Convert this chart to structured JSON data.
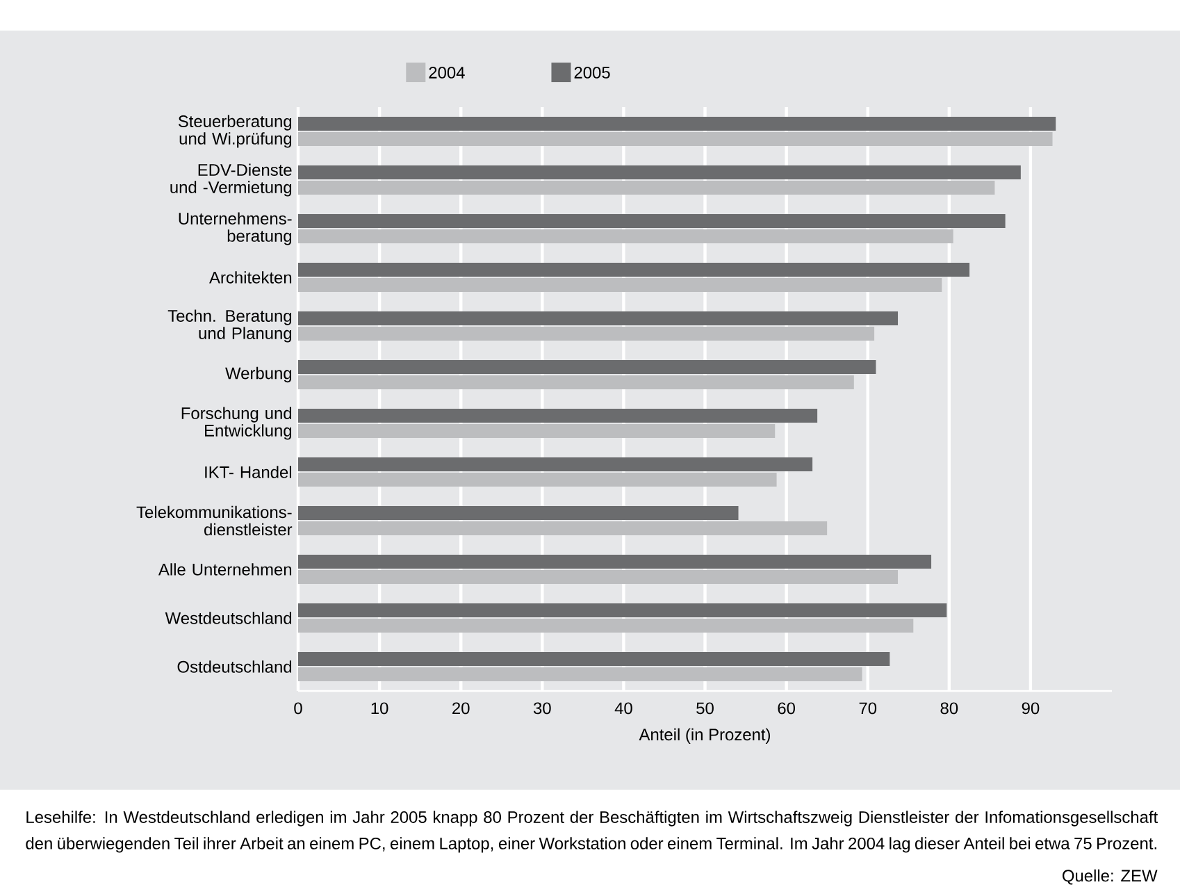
{
  "chart_data": {
    "type": "bar",
    "orientation": "horizontal",
    "xlabel": "Anteil (in Prozent)",
    "categories": [
      "Steuerberatung und Wi.prüfung",
      "EDV-Dienste und -Vermietung",
      "Unternehmens-beratung",
      "Architekten",
      "Techn. Beratung und Planung",
      "Werbung",
      "Forschung und Entwicklung",
      "IKT- Handel",
      "Telekommunikations-dienstleister",
      "Alle Unternehmen",
      "Westdeutschland",
      "Ostdeutschland"
    ],
    "series": [
      {
        "name": "2004",
        "color": "#bcbdbf",
        "values": [
          92.7,
          85.6,
          80.5,
          79.1,
          70.8,
          68.3,
          58.6,
          58.8,
          65.0,
          73.7,
          75.6,
          69.3
        ]
      },
      {
        "name": "2005",
        "color": "#6b6c6e",
        "values": [
          93.1,
          88.8,
          86.9,
          82.5,
          73.7,
          71.0,
          63.8,
          63.2,
          54.1,
          77.8,
          79.7,
          72.7
        ]
      }
    ],
    "xlim": [
      0,
      100
    ],
    "xticks": [
      0,
      10,
      20,
      30,
      40,
      50,
      60,
      70,
      80,
      90
    ],
    "grid": "x",
    "legend": "top",
    "annotations": [
      "Lesehilfe: In Westdeutschland erledigen im Jahr 2005 knapp 80 Prozent der Beschäftigten im Wirtschaftszweig Dienstleister der Infomationsgesellschaft den überwiegenden Teil ihrer Arbeit an einem PC, einem Laptop, einer Workstation oder einem Terminal. Im Jahr 2004 lag dieser Anteil bei etwa 75 Prozent.",
      "Quelle: ZEW"
    ]
  }
}
